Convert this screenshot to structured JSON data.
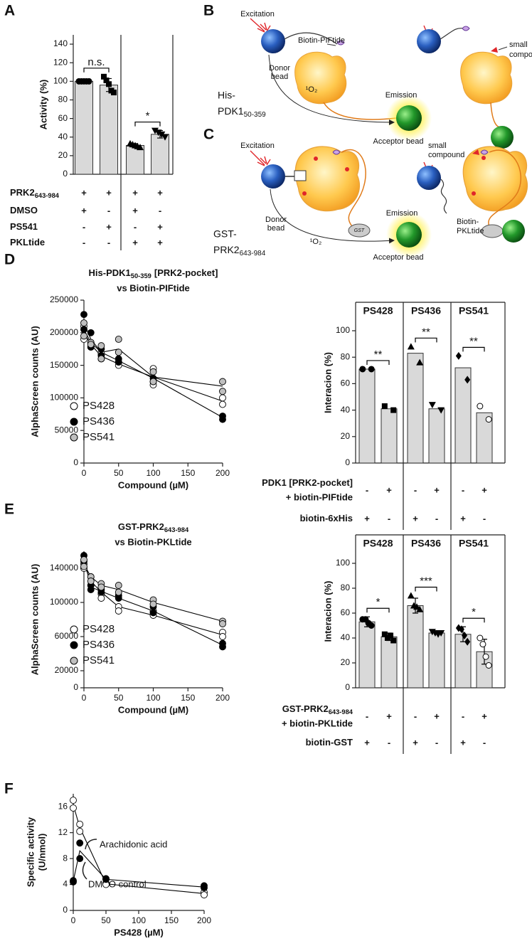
{
  "panel_labels": [
    "A",
    "B",
    "C",
    "D",
    "E",
    "F"
  ],
  "diagrams": {
    "B": {
      "excitation": "Excitation",
      "peptide": "Biotin-PIFtide",
      "donor": [
        "Donor",
        "bead"
      ],
      "singlet": "¹O₂",
      "protein": "His-",
      "protein2": "PDK1",
      "protein_sub": "50-359",
      "emission": "Emission",
      "acceptor": "Acceptor bead",
      "compound": [
        "small",
        "compound"
      ]
    },
    "C": {
      "excitation": "Excitation",
      "donor": [
        "Donor",
        "bead"
      ],
      "singlet": "¹O₂",
      "protein": "GST-",
      "protein2": "PRK2",
      "protein_sub": "643-984",
      "tag": "GST",
      "emission": "Emission",
      "acceptor": "Acceptor bead",
      "compound": [
        "small",
        "compound"
      ],
      "peptide": [
        "Biotin-",
        "PKLtide"
      ]
    }
  },
  "chart_data": [
    {
      "type": "bar",
      "ylabel": "Activity (%)",
      "ylim": [
        0,
        150
      ],
      "yticks": [
        0,
        20,
        40,
        60,
        80,
        100,
        120,
        140
      ],
      "color": "#d9d9d9",
      "values": [
        100,
        96,
        31,
        43
      ],
      "errors": [
        null,
        7,
        2,
        4
      ],
      "points": [
        [
          100,
          100,
          100,
          100,
          100
        ],
        [
          105,
          101,
          97,
          90,
          88
        ],
        [
          33,
          32,
          31,
          30,
          29
        ],
        [
          47,
          45,
          43,
          40
        ]
      ],
      "markers": [
        "circle",
        "square",
        "triangle-up",
        "triangle-down"
      ],
      "annotations": [
        {
          "text": "n.s.",
          "from": 0,
          "to": 1
        },
        {
          "text": "*",
          "from": 2,
          "to": 3
        }
      ],
      "conditions": [
        {
          "label": "PRK2",
          "label_sub": "643-984",
          "signs": [
            "+",
            "+",
            "+",
            "+"
          ]
        },
        {
          "label": "DMSO",
          "signs": [
            "+",
            "-",
            "+",
            "-"
          ]
        },
        {
          "label": "PS541",
          "signs": [
            "-",
            "+",
            "-",
            "+"
          ]
        },
        {
          "label": "PKLtide",
          "signs": [
            "-",
            "-",
            "+",
            "+"
          ]
        }
      ]
    },
    {
      "type": "line",
      "title": "His-PDK1",
      "title_sub": "50-359",
      "title_rest": "[PRK2-pocket]",
      "subtitle": "vs Biotin-PIFtide",
      "xlabel": "Compound (µM)",
      "ylabel": "AlphaScreen counts (AU)",
      "x": [
        0,
        10,
        25,
        50,
        100,
        200
      ],
      "xlim": [
        0,
        200
      ],
      "xticks": [
        0,
        50,
        100,
        150,
        200
      ],
      "ylim": [
        0,
        250000
      ],
      "yticks": [
        0,
        50000,
        100000,
        150000,
        200000,
        250000
      ],
      "series": [
        {
          "name": "PS428",
          "color": "#ffffff",
          "values": [
            200000,
            182000,
            164000,
            152000,
            132000,
            95000
          ],
          "replicates": [
            [
              210000,
              190000
            ],
            [
              185000,
              178000
            ],
            [
              168000,
              160000
            ],
            [
              150000,
              155000
            ],
            [
              145000,
              120000
            ],
            [
              100000,
              90000
            ]
          ]
        },
        {
          "name": "PS436",
          "color": "#000000",
          "values": [
            215000,
            190000,
            170000,
            157000,
            130000,
            70000
          ],
          "replicates": [
            [
              228000,
              205000
            ],
            [
              200000,
              178000
            ],
            [
              175000,
              165000
            ],
            [
              160000,
              155000
            ],
            [
              130000,
              125000
            ],
            [
              72000,
              67000
            ]
          ]
        },
        {
          "name": "PS541",
          "color": "#bfbfbf",
          "values": [
            205000,
            185000,
            170000,
            175000,
            132000,
            118000
          ],
          "replicates": [
            [
              215000,
              195000
            ],
            [
              185000,
              182000
            ],
            [
              180000,
              160000
            ],
            [
              190000,
              170000
            ],
            [
              140000,
              125000
            ],
            [
              125000,
              110000
            ]
          ]
        }
      ]
    },
    {
      "type": "bar",
      "ylabel": "Interacion (%)",
      "ylim": [
        0,
        100
      ],
      "yticks": [
        0,
        20,
        40,
        60,
        80,
        100
      ],
      "color": "#d9d9d9",
      "groups": [
        "PS428",
        "PS436",
        "PS541"
      ],
      "values": [
        71,
        41,
        83,
        41,
        72,
        38
      ],
      "points": [
        [
          71,
          71
        ],
        [
          43,
          40
        ],
        [
          88,
          76
        ],
        [
          44,
          40
        ],
        [
          81,
          63
        ],
        [
          43,
          33
        ]
      ],
      "markers": [
        "circle",
        "square",
        "triangle-up",
        "triangle-down",
        "diamond",
        "circle-open"
      ],
      "annotations": [
        {
          "text": "**",
          "from": 0,
          "to": 1
        },
        {
          "text": "**",
          "from": 2,
          "to": 3
        },
        {
          "text": "**",
          "from": 4,
          "to": 5
        }
      ],
      "conditions": [
        {
          "label": "PDK1 [PRK2-pocket]",
          "label2": "+ biotin-PIFtide",
          "signs": [
            "-",
            "+",
            "-",
            "+",
            "-",
            "+"
          ]
        },
        {
          "label": "biotin-6xHis",
          "signs": [
            "+",
            "-",
            "+",
            "-",
            "+",
            "-"
          ]
        }
      ]
    },
    {
      "type": "line",
      "title": "GST-PRK2",
      "title_sub": "643-984",
      "subtitle": "vs Biotin-PKLtide",
      "xlabel": "Compound (µM)",
      "ylabel": "AlphaScreen counts (AU)",
      "x": [
        0,
        10,
        25,
        50,
        100,
        200
      ],
      "xlim": [
        0,
        200
      ],
      "xticks": [
        0,
        50,
        100,
        150,
        200
      ],
      "ylim": [
        0,
        160000
      ],
      "yticks": [
        0,
        20000,
        60000,
        100000,
        140000
      ],
      "series": [
        {
          "name": "PS428",
          "color": "#ffffff",
          "values": [
            145000,
            125000,
            112000,
            95000,
            85000,
            62000
          ],
          "replicates": [
            [
              140000,
              145000
            ],
            [
              130000,
              120000
            ],
            [
              110000,
              105000
            ],
            [
              95000,
              90000
            ],
            [
              90000,
              85000
            ],
            [
              65000,
              60000
            ]
          ]
        },
        {
          "name": "PS436",
          "color": "#000000",
          "values": [
            152000,
            118000,
            113000,
            105000,
            90000,
            50000
          ],
          "replicates": [
            [
              155000,
              148000
            ],
            [
              120000,
              115000
            ],
            [
              115000,
              112000
            ],
            [
              108000,
              105000
            ],
            [
              95000,
              88000
            ],
            [
              52000,
              48000
            ]
          ]
        },
        {
          "name": "PS541",
          "color": "#bfbfbf",
          "values": [
            145000,
            130000,
            120000,
            115000,
            100000,
            78000
          ],
          "replicates": [
            [
              150000,
              142000
            ],
            [
              130000,
              125000
            ],
            [
              122000,
              118000
            ],
            [
              120000,
              112000
            ],
            [
              103000,
              98000
            ],
            [
              78000,
              75000
            ]
          ]
        }
      ]
    },
    {
      "type": "bar",
      "ylabel": "Interacion (%)",
      "ylim": [
        0,
        100
      ],
      "yticks": [
        0,
        20,
        40,
        60,
        80,
        100
      ],
      "color": "#d9d9d9",
      "groups": [
        "PS428",
        "PS436",
        "PS541"
      ],
      "values": [
        53,
        41,
        66,
        44,
        43,
        29
      ],
      "errors": [
        4,
        3,
        6,
        1,
        6,
        10
      ],
      "points": [
        [
          55,
          55,
          52,
          50
        ],
        [
          43,
          40,
          42,
          38
        ],
        [
          74,
          66,
          65,
          63
        ],
        [
          45,
          44,
          43,
          44
        ],
        [
          48,
          47,
          42,
          37
        ],
        [
          40,
          35,
          25,
          18
        ]
      ],
      "markers": [
        "circle",
        "square",
        "triangle-up",
        "triangle-down",
        "diamond",
        "circle-open"
      ],
      "annotations": [
        {
          "text": "*",
          "from": 0,
          "to": 1
        },
        {
          "text": "***",
          "from": 2,
          "to": 3
        },
        {
          "text": "*",
          "from": 4,
          "to": 5
        }
      ],
      "conditions": [
        {
          "label": "GST-PRK2",
          "label_sub": "643-984",
          "label2": "+ biotin-PKLtide",
          "signs": [
            "-",
            "+",
            "-",
            "+",
            "-",
            "+"
          ]
        },
        {
          "label": "biotin-GST",
          "signs": [
            "+",
            "-",
            "+",
            "-",
            "+",
            "-"
          ]
        }
      ]
    },
    {
      "type": "line",
      "xlabel": "PS428 (µM)",
      "ylabel": "Specific activity",
      "ylabel2": "(U/nmol)",
      "x": [
        0,
        10,
        50,
        200
      ],
      "xlim": [
        0,
        200
      ],
      "xticks": [
        0,
        50,
        100,
        150,
        200
      ],
      "ylim": [
        0,
        18
      ],
      "yticks": [
        0,
        4,
        8,
        12,
        16
      ],
      "annotations": [
        "Arachidonic acid",
        "DMSO control"
      ],
      "series": [
        {
          "color": "#ffffff",
          "values": [
            16.3,
            12.8,
            4.1,
            2.6
          ],
          "replicates": [
            [
              17,
              15.8
            ],
            [
              13.3,
              12.2
            ],
            [
              4.2,
              4.0
            ],
            [
              2.8,
              2.4
            ]
          ]
        },
        {
          "color": "#000000",
          "values": [
            4.5,
            9.2,
            4.8,
            3.6
          ],
          "replicates": [
            [
              4.6,
              4.4
            ],
            [
              10.4,
              8.0
            ],
            [
              4.9,
              4.8
            ],
            [
              3.8,
              3.5
            ]
          ]
        }
      ]
    }
  ]
}
